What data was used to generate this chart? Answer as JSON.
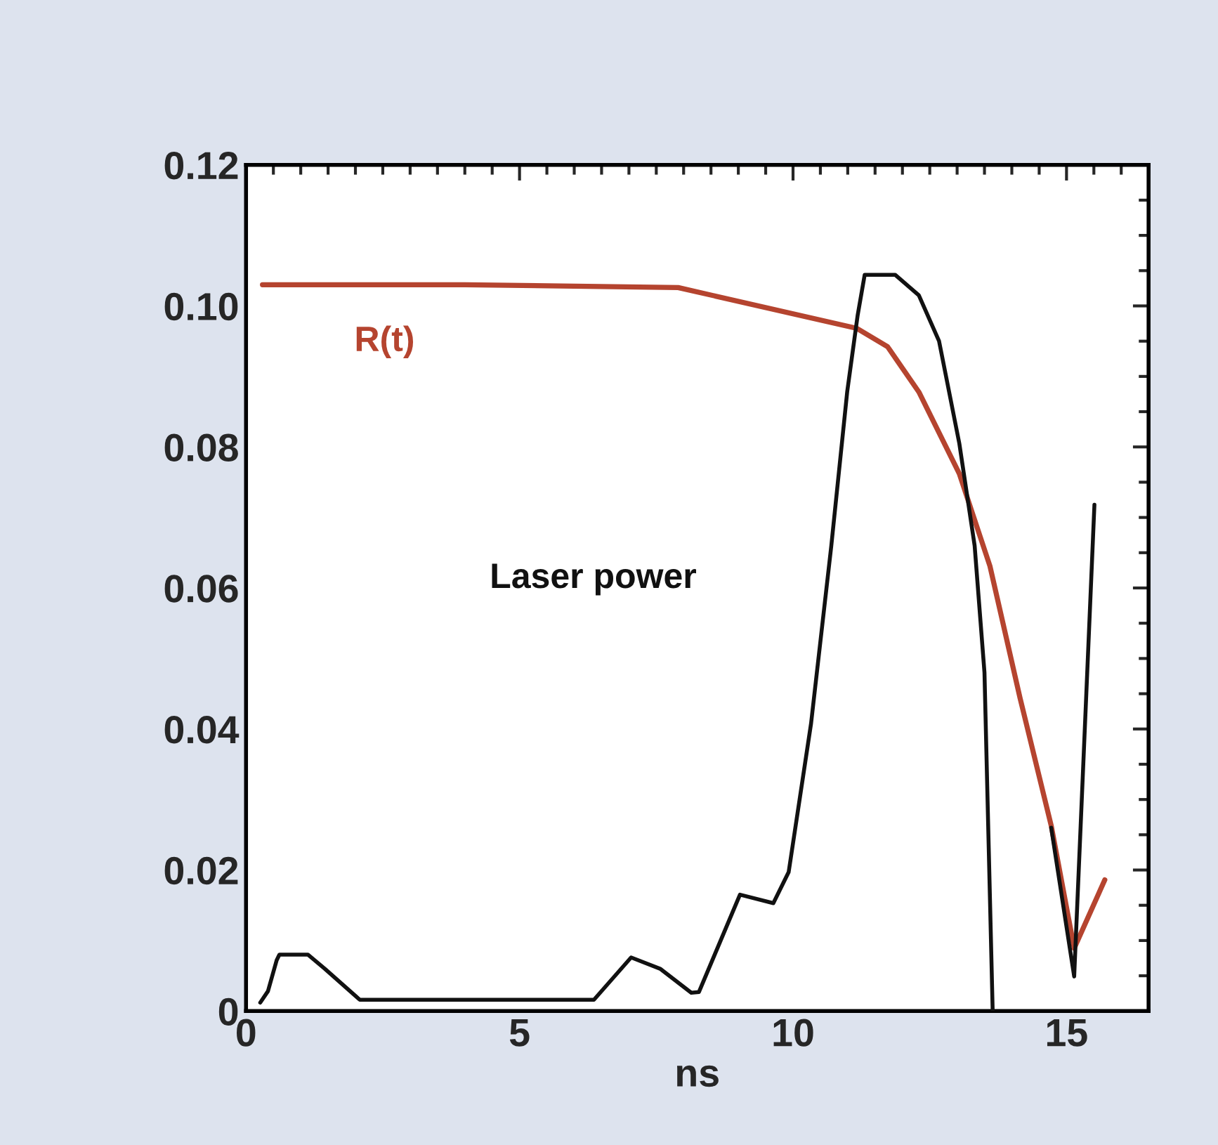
{
  "chart_data": {
    "type": "line",
    "xlabel": "ns",
    "xlim": [
      0,
      16.5
    ],
    "xticks": [
      0,
      5,
      10,
      15
    ],
    "ylim": [
      0,
      0.12
    ],
    "yticks": [
      0,
      0.02,
      0.04,
      0.06,
      0.08,
      {
        "value": 0.1,
        "label": "0.10"
      },
      0.12
    ],
    "grid": false,
    "legend": false,
    "line_style": "solid",
    "series": [
      {
        "name": "R(t)",
        "color": "#b5442f",
        "x": [
          0.3,
          4,
          7.9,
          11.17,
          11.73,
          12.3,
          13.04,
          13.6,
          14.15,
          14.72,
          15.14,
          15.7
        ],
        "values": [
          0.103,
          0.103,
          0.1026,
          0.0968,
          0.0942,
          0.0878,
          0.0762,
          0.0631,
          0.0444,
          0.0263,
          0.0089,
          0.0186
        ]
      },
      {
        "name": "Laser power",
        "color": "#111111",
        "x": [
          0.26,
          0.4,
          0.56,
          0.61,
          1.13,
          1.44,
          2.08,
          6.36,
          7.04,
          7.57,
          8.14,
          8.28,
          9.03,
          9.64,
          9.92,
          10.33,
          10.7,
          10.99,
          11.18,
          11.31,
          11.87,
          12.3,
          12.67,
          13.04,
          13.32,
          13.5,
          13.65,
          14.2,
          14.72,
          15.14,
          15.51
        ],
        "values": [
          0.0012,
          0.0028,
          0.0072,
          0.008,
          0.008,
          0.006,
          0.0016,
          0.0016,
          0.0076,
          0.006,
          0.0026,
          0.0027,
          0.0165,
          0.0153,
          0.0197,
          0.0408,
          0.066,
          0.0878,
          0.0986,
          0.1044,
          0.1044,
          0.1015,
          0.095,
          0.0805,
          0.066,
          0.048,
          0.0,
          null,
          0.026,
          0.0049,
          0.0718
        ]
      }
    ]
  }
}
